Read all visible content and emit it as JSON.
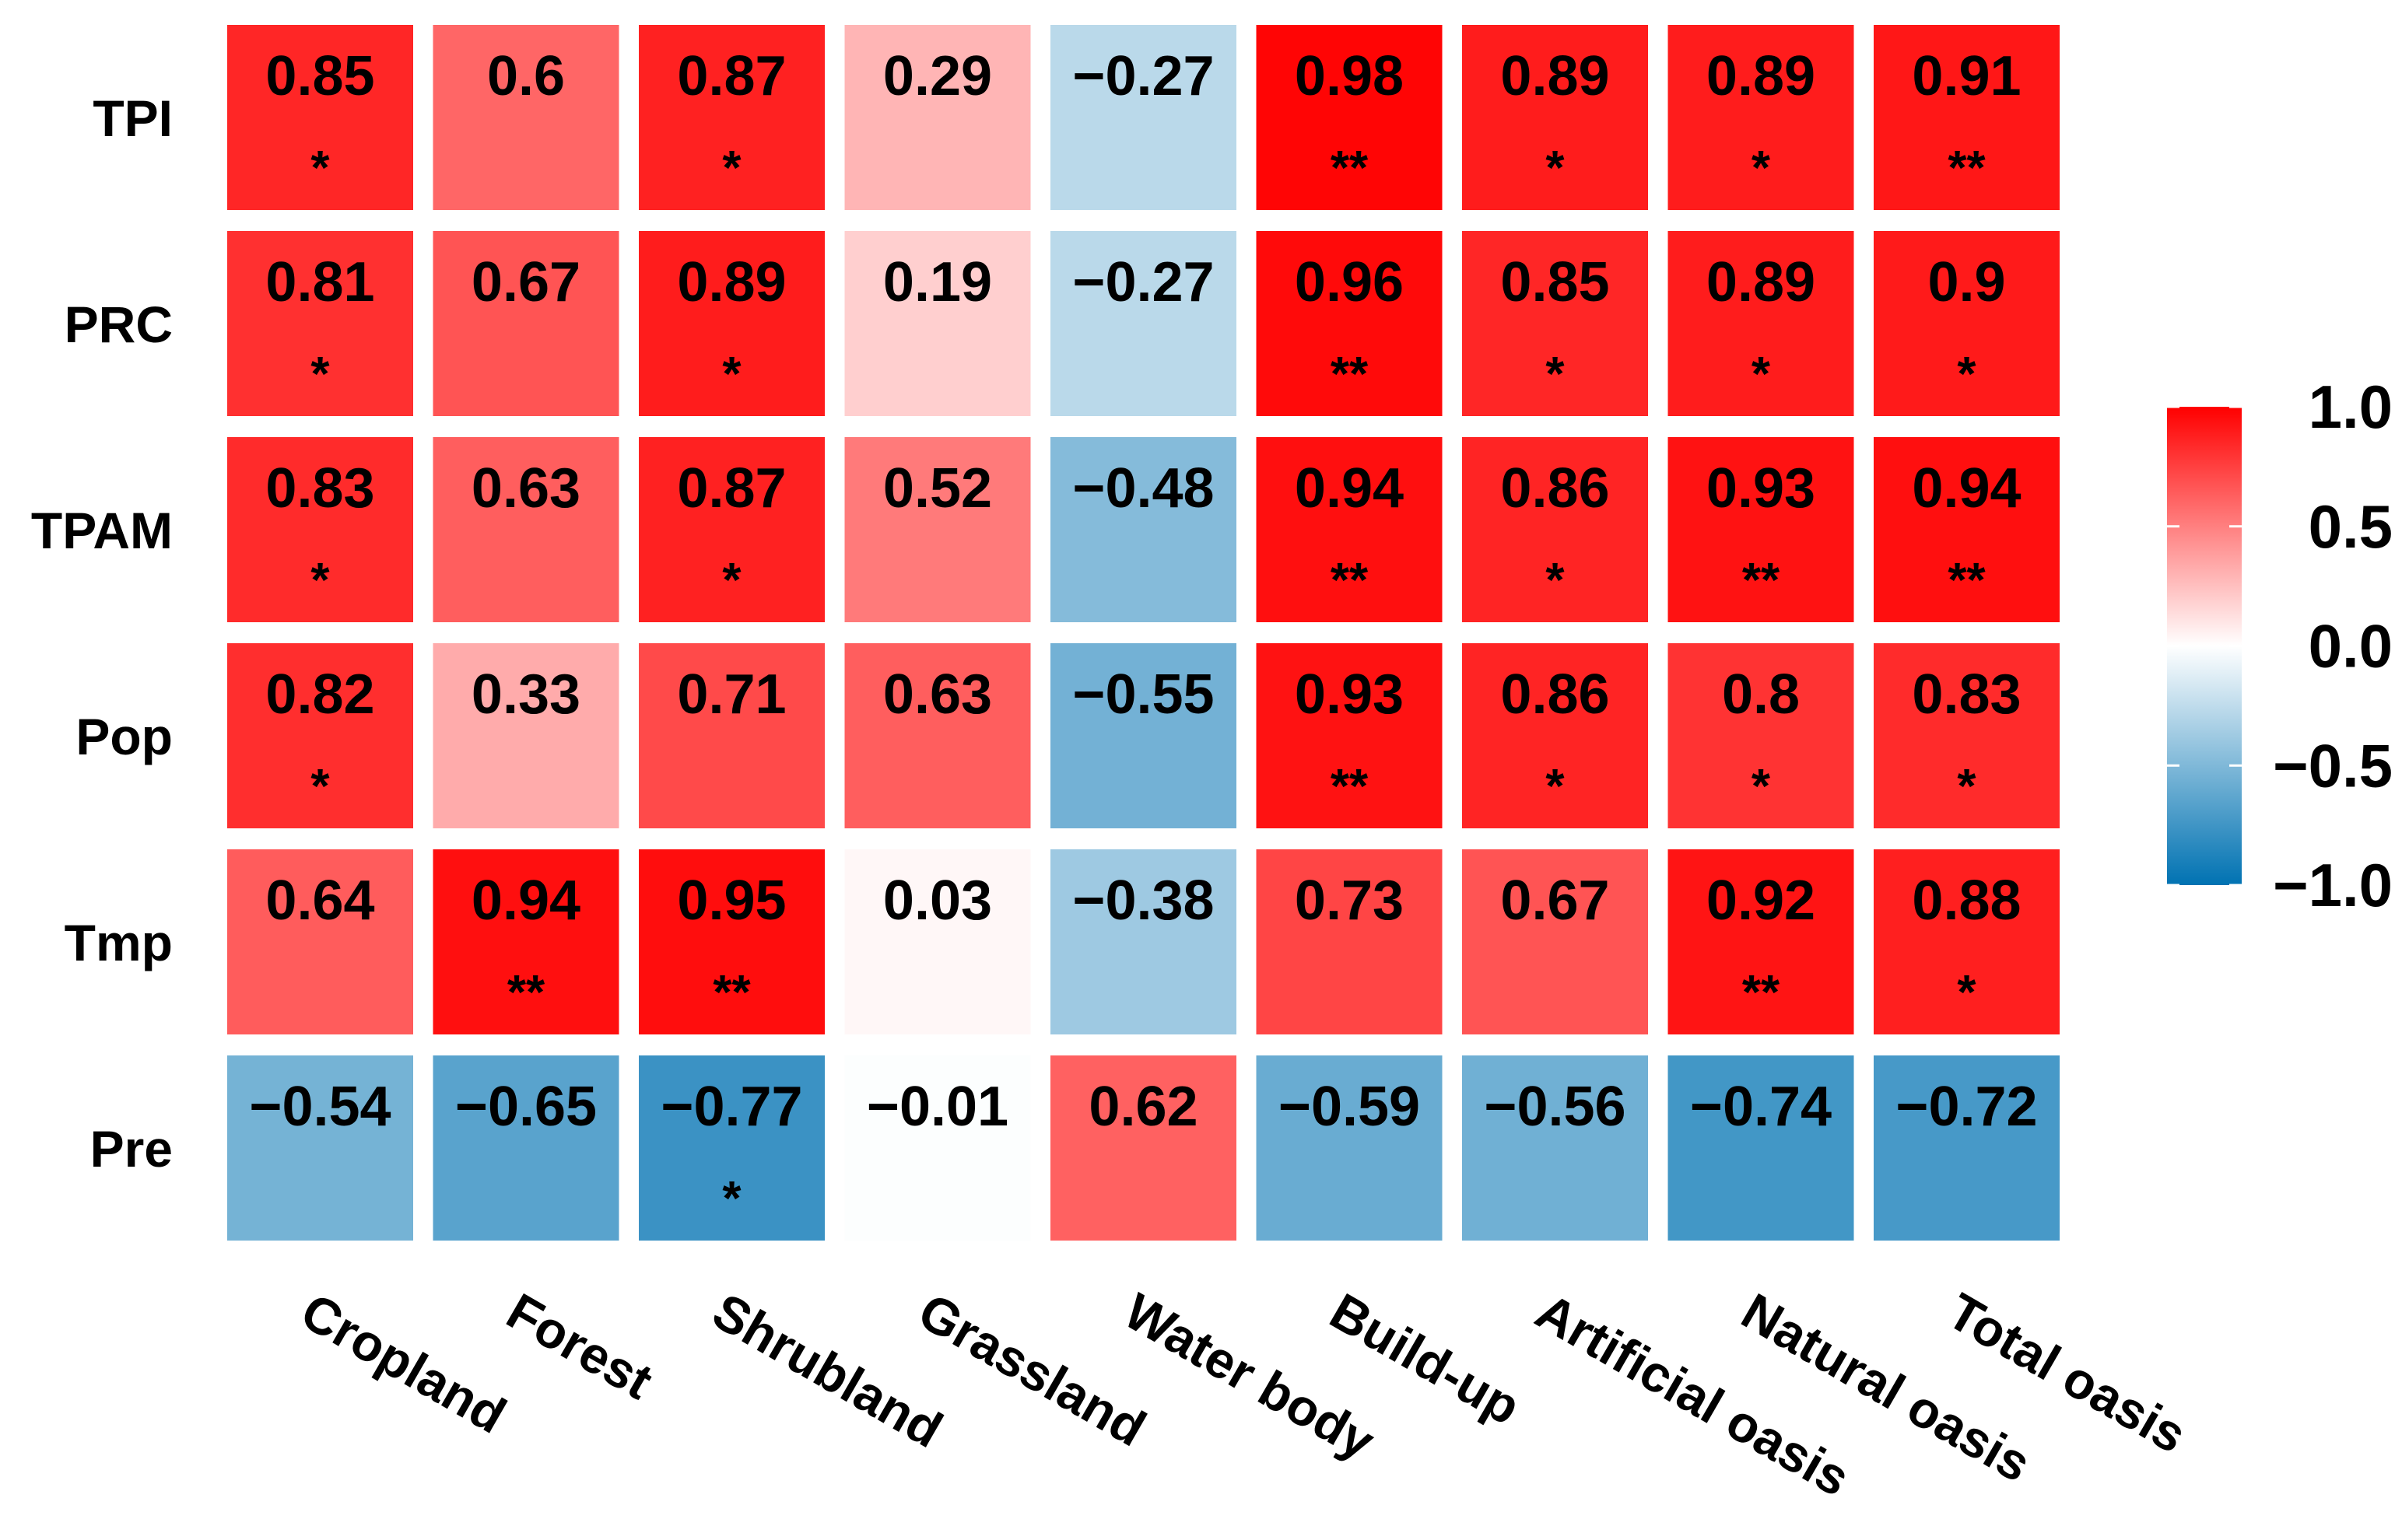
{
  "chart_data": {
    "type": "heatmap",
    "title": "",
    "rows": [
      "TPI",
      "PRC",
      "TPAM",
      "Pop",
      "Tmp",
      "Pre"
    ],
    "columns": [
      "Cropland",
      "Forest",
      "Shrubland",
      "Grassland",
      "Water body",
      "Build-up",
      "Artificial oasis",
      "Natural oasis",
      "Total oasis"
    ],
    "values": [
      [
        0.85,
        0.6,
        0.87,
        0.29,
        -0.27,
        0.98,
        0.89,
        0.89,
        0.91
      ],
      [
        0.81,
        0.67,
        0.89,
        0.19,
        -0.27,
        0.96,
        0.85,
        0.89,
        0.9
      ],
      [
        0.83,
        0.63,
        0.87,
        0.52,
        -0.48,
        0.94,
        0.86,
        0.93,
        0.94
      ],
      [
        0.82,
        0.33,
        0.71,
        0.63,
        -0.55,
        0.93,
        0.86,
        0.8,
        0.83
      ],
      [
        0.64,
        0.94,
        0.95,
        0.03,
        -0.38,
        0.73,
        0.67,
        0.92,
        0.88
      ],
      [
        -0.54,
        -0.65,
        -0.77,
        -0.01,
        0.62,
        -0.59,
        -0.56,
        -0.74,
        -0.72
      ]
    ],
    "labels": [
      [
        "0.85",
        "0.6",
        "0.87",
        "0.29",
        "−0.27",
        "0.98",
        "0.89",
        "0.89",
        "0.91"
      ],
      [
        "0.81",
        "0.67",
        "0.89",
        "0.19",
        "−0.27",
        "0.96",
        "0.85",
        "0.89",
        "0.9"
      ],
      [
        "0.83",
        "0.63",
        "0.87",
        "0.52",
        "−0.48",
        "0.94",
        "0.86",
        "0.93",
        "0.94"
      ],
      [
        "0.82",
        "0.33",
        "0.71",
        "0.63",
        "−0.55",
        "0.93",
        "0.86",
        "0.8",
        "0.83"
      ],
      [
        "0.64",
        "0.94",
        "0.95",
        "0.03",
        "−0.38",
        "0.73",
        "0.67",
        "0.92",
        "0.88"
      ],
      [
        "−0.54",
        "−0.65",
        "−0.77",
        "−0.01",
        "0.62",
        "−0.59",
        "−0.56",
        "−0.74",
        "−0.72"
      ]
    ],
    "significance": [
      [
        "*",
        "",
        "*",
        "",
        "",
        "**",
        "*",
        "*",
        "**"
      ],
      [
        "*",
        "",
        "*",
        "",
        "",
        "**",
        "*",
        "*",
        "*"
      ],
      [
        "*",
        "",
        "*",
        "",
        "",
        "**",
        "*",
        "**",
        "**"
      ],
      [
        "*",
        "",
        "",
        "",
        "",
        "**",
        "*",
        "*",
        "*"
      ],
      [
        "",
        "**",
        "**",
        "",
        "",
        "",
        "",
        "**",
        "*"
      ],
      [
        "",
        "",
        "*",
        "",
        "",
        "",
        "",
        "",
        ""
      ]
    ],
    "colorbar": {
      "min": -1.0,
      "max": 1.0,
      "ticks": [
        "1.0",
        "0.5",
        "0.0",
        "−0.5",
        "−1.0"
      ],
      "tick_values": [
        1.0,
        0.5,
        0.0,
        -0.5,
        -1.0
      ],
      "low_color": "#0072b2",
      "mid_color": "#ffffff",
      "high_color": "#ff0000"
    }
  }
}
